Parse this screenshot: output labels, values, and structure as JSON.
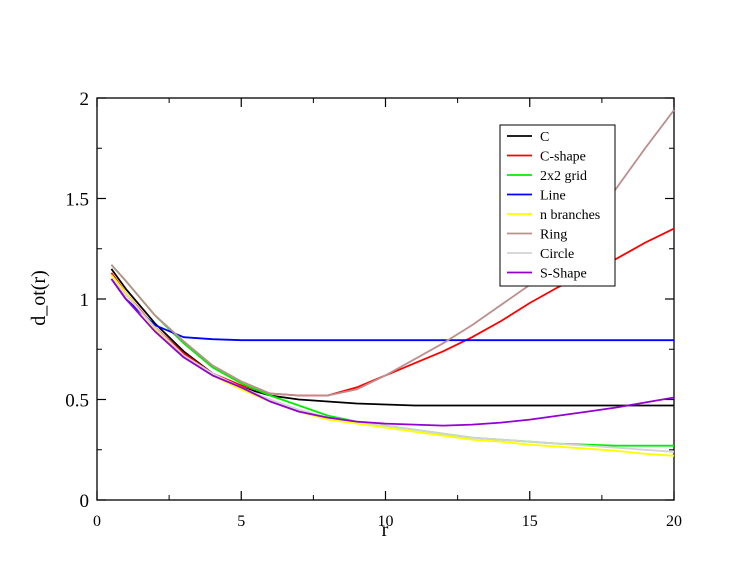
{
  "chart_data": {
    "type": "line",
    "title": "",
    "xlabel": "r",
    "ylabel": "d_ot(r)",
    "xlim": [
      0,
      20
    ],
    "ylim": [
      0,
      2
    ],
    "x_ticks": [
      {
        "value": 0,
        "label": "0"
      },
      {
        "value": 5,
        "label": "5"
      },
      {
        "value": 10,
        "label": "10"
      },
      {
        "value": 15,
        "label": "15"
      },
      {
        "value": 20,
        "label": "20"
      }
    ],
    "y_ticks": [
      {
        "value": 0,
        "label": "0"
      },
      {
        "value": 0.5,
        "label": "0.5"
      },
      {
        "value": 1,
        "label": "1"
      },
      {
        "value": 1.5,
        "label": "1.5"
      },
      {
        "value": 2,
        "label": "2"
      }
    ],
    "grid": false,
    "legend_position": "top-right",
    "series": [
      {
        "name": "C",
        "color": "#000000",
        "x": [
          0.5,
          1,
          2,
          3,
          4,
          5,
          6,
          7,
          8,
          9,
          10,
          11,
          12,
          13,
          14,
          15,
          16,
          17,
          18,
          19,
          20
        ],
        "y": [
          1.15,
          1.05,
          0.88,
          0.74,
          0.63,
          0.56,
          0.52,
          0.5,
          0.49,
          0.48,
          0.475,
          0.47,
          0.47,
          0.47,
          0.47,
          0.47,
          0.47,
          0.47,
          0.47,
          0.47,
          0.47
        ]
      },
      {
        "name": "C-shape",
        "color": "#ff0000",
        "x": [
          0.5,
          1,
          2,
          3,
          4,
          5,
          6,
          7,
          8,
          9,
          10,
          11,
          12,
          13,
          14,
          15,
          16,
          17,
          18,
          19,
          20
        ],
        "y": [
          1.13,
          1.03,
          0.86,
          0.73,
          0.63,
          0.57,
          0.53,
          0.52,
          0.52,
          0.56,
          0.62,
          0.68,
          0.74,
          0.81,
          0.89,
          0.98,
          1.06,
          1.13,
          1.2,
          1.28,
          1.35
        ]
      },
      {
        "name": "2x2 grid",
        "color": "#00ee00",
        "x": [
          0.5,
          1,
          2,
          3,
          4,
          5,
          6,
          7,
          8,
          9,
          10,
          11,
          12,
          13,
          14,
          15,
          16,
          17,
          18,
          19,
          20
        ],
        "y": [
          1.17,
          1.09,
          0.92,
          0.78,
          0.66,
          0.58,
          0.52,
          0.47,
          0.42,
          0.39,
          0.37,
          0.35,
          0.33,
          0.31,
          0.3,
          0.29,
          0.28,
          0.275,
          0.27,
          0.27,
          0.27
        ]
      },
      {
        "name": "Line",
        "color": "#0000ff",
        "x": [
          0.5,
          1,
          2,
          3,
          4,
          5,
          6,
          7,
          8,
          9,
          10,
          11,
          12,
          13,
          14,
          15,
          16,
          17,
          18,
          19,
          20
        ],
        "y": [
          1.1,
          1.0,
          0.87,
          0.81,
          0.8,
          0.795,
          0.795,
          0.795,
          0.795,
          0.795,
          0.795,
          0.795,
          0.795,
          0.795,
          0.795,
          0.795,
          0.795,
          0.795,
          0.795,
          0.795,
          0.795
        ]
      },
      {
        "name": "n branches",
        "color": "#ffff00",
        "x": [
          0.5,
          1,
          2,
          3,
          4,
          5,
          6,
          7,
          8,
          9,
          10,
          11,
          12,
          13,
          14,
          15,
          16,
          17,
          18,
          19,
          20
        ],
        "y": [
          1.12,
          1.03,
          0.85,
          0.71,
          0.62,
          0.55,
          0.49,
          0.44,
          0.4,
          0.38,
          0.36,
          0.34,
          0.32,
          0.3,
          0.29,
          0.275,
          0.265,
          0.255,
          0.245,
          0.23,
          0.22
        ]
      },
      {
        "name": "Ring",
        "color": "#bc8f8f",
        "x": [
          0.5,
          1,
          2,
          3,
          4,
          5,
          6,
          7,
          8,
          9,
          10,
          11,
          12,
          13,
          14,
          15,
          16,
          17,
          18,
          19,
          20
        ],
        "y": [
          1.17,
          1.09,
          0.92,
          0.79,
          0.67,
          0.59,
          0.53,
          0.52,
          0.52,
          0.55,
          0.62,
          0.7,
          0.78,
          0.87,
          0.97,
          1.07,
          1.18,
          1.37,
          1.55,
          1.75,
          1.94
        ]
      },
      {
        "name": "Circle",
        "color": "#d3d3d3",
        "x": [
          0.5,
          1,
          2,
          3,
          4,
          5,
          6,
          7,
          8,
          9,
          10,
          11,
          12,
          13,
          14,
          15,
          16,
          17,
          18,
          19,
          20
        ],
        "y": [
          1.1,
          1.02,
          0.86,
          0.72,
          0.63,
          0.56,
          0.5,
          0.45,
          0.41,
          0.39,
          0.37,
          0.35,
          0.33,
          0.31,
          0.3,
          0.29,
          0.28,
          0.27,
          0.26,
          0.25,
          0.24
        ]
      },
      {
        "name": "S-Shape",
        "color": "#9400d3",
        "x": [
          0.5,
          1,
          2,
          3,
          4,
          5,
          6,
          7,
          8,
          9,
          10,
          11,
          12,
          13,
          14,
          15,
          16,
          17,
          18,
          19,
          20
        ],
        "y": [
          1.1,
          1.0,
          0.84,
          0.71,
          0.62,
          0.56,
          0.49,
          0.44,
          0.41,
          0.39,
          0.38,
          0.375,
          0.37,
          0.375,
          0.385,
          0.4,
          0.42,
          0.44,
          0.46,
          0.485,
          0.51
        ]
      }
    ]
  }
}
